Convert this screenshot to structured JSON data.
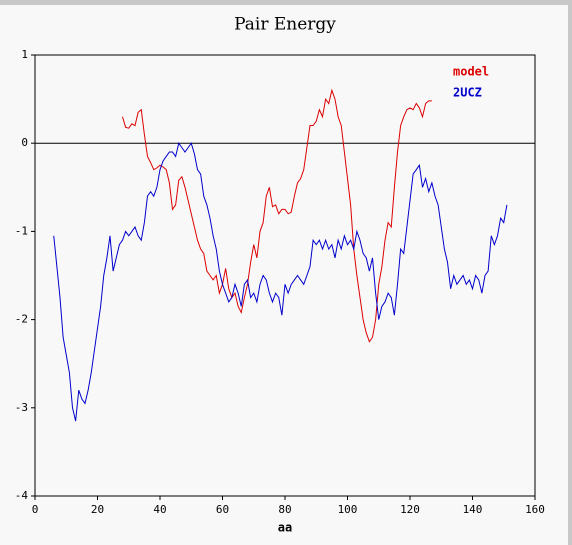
{
  "chart_data": {
    "type": "line",
    "title": "Pair Energy",
    "xlabel": "aa",
    "x": [
      6,
      7,
      8,
      9,
      10,
      11,
      12,
      13,
      14,
      15,
      16,
      17,
      18,
      19,
      20,
      21,
      22,
      23,
      24,
      25,
      26,
      27,
      28,
      29,
      30,
      31,
      32,
      33,
      34,
      35,
      36,
      37,
      38,
      39,
      40,
      41,
      42,
      43,
      44,
      45,
      46,
      47,
      48,
      49,
      50,
      51,
      52,
      53,
      54,
      55,
      56,
      57,
      58,
      59,
      60,
      61,
      62,
      63,
      64,
      65,
      66,
      67,
      68,
      69,
      70,
      71,
      72,
      73,
      74,
      75,
      76,
      77,
      78,
      79,
      80,
      81,
      82,
      83,
      84,
      85,
      86,
      87,
      88,
      89,
      90,
      91,
      92,
      93,
      94,
      95,
      96,
      97,
      98,
      99,
      100,
      101,
      102,
      103,
      104,
      105,
      106,
      107,
      108,
      109,
      110,
      111,
      112,
      113,
      114,
      115,
      116,
      117,
      118,
      119,
      120,
      121,
      122,
      123,
      124,
      125,
      126,
      127,
      128,
      129,
      130,
      131,
      132,
      133,
      134,
      135,
      136,
      137,
      138,
      139,
      140,
      141,
      142,
      143,
      144,
      145,
      146,
      147,
      148,
      149,
      150,
      151
    ],
    "series": [
      {
        "name": "model",
        "color": "#dd0000",
        "values": [
          null,
          null,
          null,
          null,
          null,
          null,
          null,
          null,
          null,
          null,
          null,
          null,
          null,
          null,
          null,
          null,
          null,
          null,
          null,
          null,
          null,
          null,
          0.3,
          0.18,
          0.17,
          0.22,
          0.2,
          0.35,
          0.38,
          0.1,
          -0.15,
          -0.22,
          -0.3,
          -0.28,
          -0.25,
          -0.27,
          -0.3,
          -0.45,
          -0.75,
          -0.7,
          -0.42,
          -0.38,
          -0.5,
          -0.65,
          -0.8,
          -0.95,
          -1.1,
          -1.2,
          -1.25,
          -1.45,
          -1.5,
          -1.55,
          -1.5,
          -1.7,
          -1.6,
          -1.42,
          -1.65,
          -1.75,
          -1.7,
          -1.85,
          -1.92,
          -1.75,
          -1.6,
          -1.35,
          -1.15,
          -1.3,
          -1.0,
          -0.9,
          -0.6,
          -0.5,
          -0.72,
          -0.7,
          -0.8,
          -0.75,
          -0.75,
          -0.8,
          -0.78,
          -0.6,
          -0.45,
          -0.4,
          -0.3,
          -0.05,
          0.2,
          0.2,
          0.25,
          0.38,
          0.3,
          0.5,
          0.45,
          0.6,
          0.5,
          0.3,
          0.2,
          -0.1,
          -0.4,
          -0.7,
          -1.2,
          -1.5,
          -1.75,
          -2.0,
          -2.15,
          -2.25,
          -2.2,
          -2.0,
          -1.6,
          -1.4,
          -1.1,
          -0.9,
          -0.95,
          -0.5,
          -0.1,
          0.2,
          0.3,
          0.38,
          0.4,
          0.38,
          0.45,
          0.4,
          0.3,
          0.45,
          0.48,
          0.48,
          null,
          null,
          null,
          null,
          null,
          null,
          null,
          null,
          null,
          null,
          null,
          null,
          null,
          null,
          null,
          null,
          null,
          null,
          null,
          null,
          null,
          null,
          null,
          null
        ]
      },
      {
        "name": "2UCZ",
        "color": "#0000cc",
        "values": [
          -1.05,
          -1.4,
          -1.75,
          -2.2,
          -2.4,
          -2.6,
          -3.0,
          -3.15,
          -2.8,
          -2.9,
          -2.95,
          -2.8,
          -2.6,
          -2.35,
          -2.1,
          -1.85,
          -1.5,
          -1.3,
          -1.05,
          -1.45,
          -1.3,
          -1.15,
          -1.1,
          -1.0,
          -1.05,
          -1.0,
          -0.95,
          -1.05,
          -1.1,
          -0.9,
          -0.6,
          -0.55,
          -0.6,
          -0.5,
          -0.3,
          -0.2,
          -0.15,
          -0.1,
          -0.1,
          -0.15,
          0.0,
          -0.05,
          -0.1,
          -0.05,
          0.0,
          -0.12,
          -0.3,
          -0.35,
          -0.6,
          -0.7,
          -0.85,
          -1.05,
          -1.2,
          -1.45,
          -1.6,
          -1.7,
          -1.8,
          -1.75,
          -1.6,
          -1.7,
          -1.85,
          -1.6,
          -1.55,
          -1.75,
          -1.7,
          -1.8,
          -1.6,
          -1.5,
          -1.55,
          -1.7,
          -1.8,
          -1.7,
          -1.75,
          -1.95,
          -1.6,
          -1.7,
          -1.6,
          -1.55,
          -1.5,
          -1.55,
          -1.6,
          -1.5,
          -1.4,
          -1.1,
          -1.15,
          -1.1,
          -1.2,
          -1.1,
          -1.2,
          -1.15,
          -1.3,
          -1.1,
          -1.2,
          -1.05,
          -1.15,
          -1.1,
          -1.2,
          -1.0,
          -1.1,
          -1.25,
          -1.3,
          -1.45,
          -1.3,
          -1.7,
          -2.0,
          -1.85,
          -1.8,
          -1.7,
          -1.75,
          -1.95,
          -1.6,
          -1.2,
          -1.25,
          -0.95,
          -0.65,
          -0.35,
          -0.3,
          -0.25,
          -0.5,
          -0.4,
          -0.55,
          -0.45,
          -0.6,
          -0.7,
          -0.95,
          -1.2,
          -1.35,
          -1.65,
          -1.5,
          -1.6,
          -1.55,
          -1.5,
          -1.6,
          -1.55,
          -1.65,
          -1.5,
          -1.55,
          -1.7,
          -1.5,
          -1.45,
          -1.05,
          -1.15,
          -1.05,
          -0.85,
          -0.9,
          -0.7
        ]
      }
    ],
    "xlim": [
      0,
      160
    ],
    "xticks": [
      0,
      20,
      40,
      60,
      80,
      100,
      120,
      140,
      160
    ],
    "ylim": [
      -4,
      1
    ],
    "yticks": [
      -4,
      -3,
      -2,
      -1,
      0,
      1
    ],
    "reference_line": 0,
    "legend": "upper right"
  }
}
